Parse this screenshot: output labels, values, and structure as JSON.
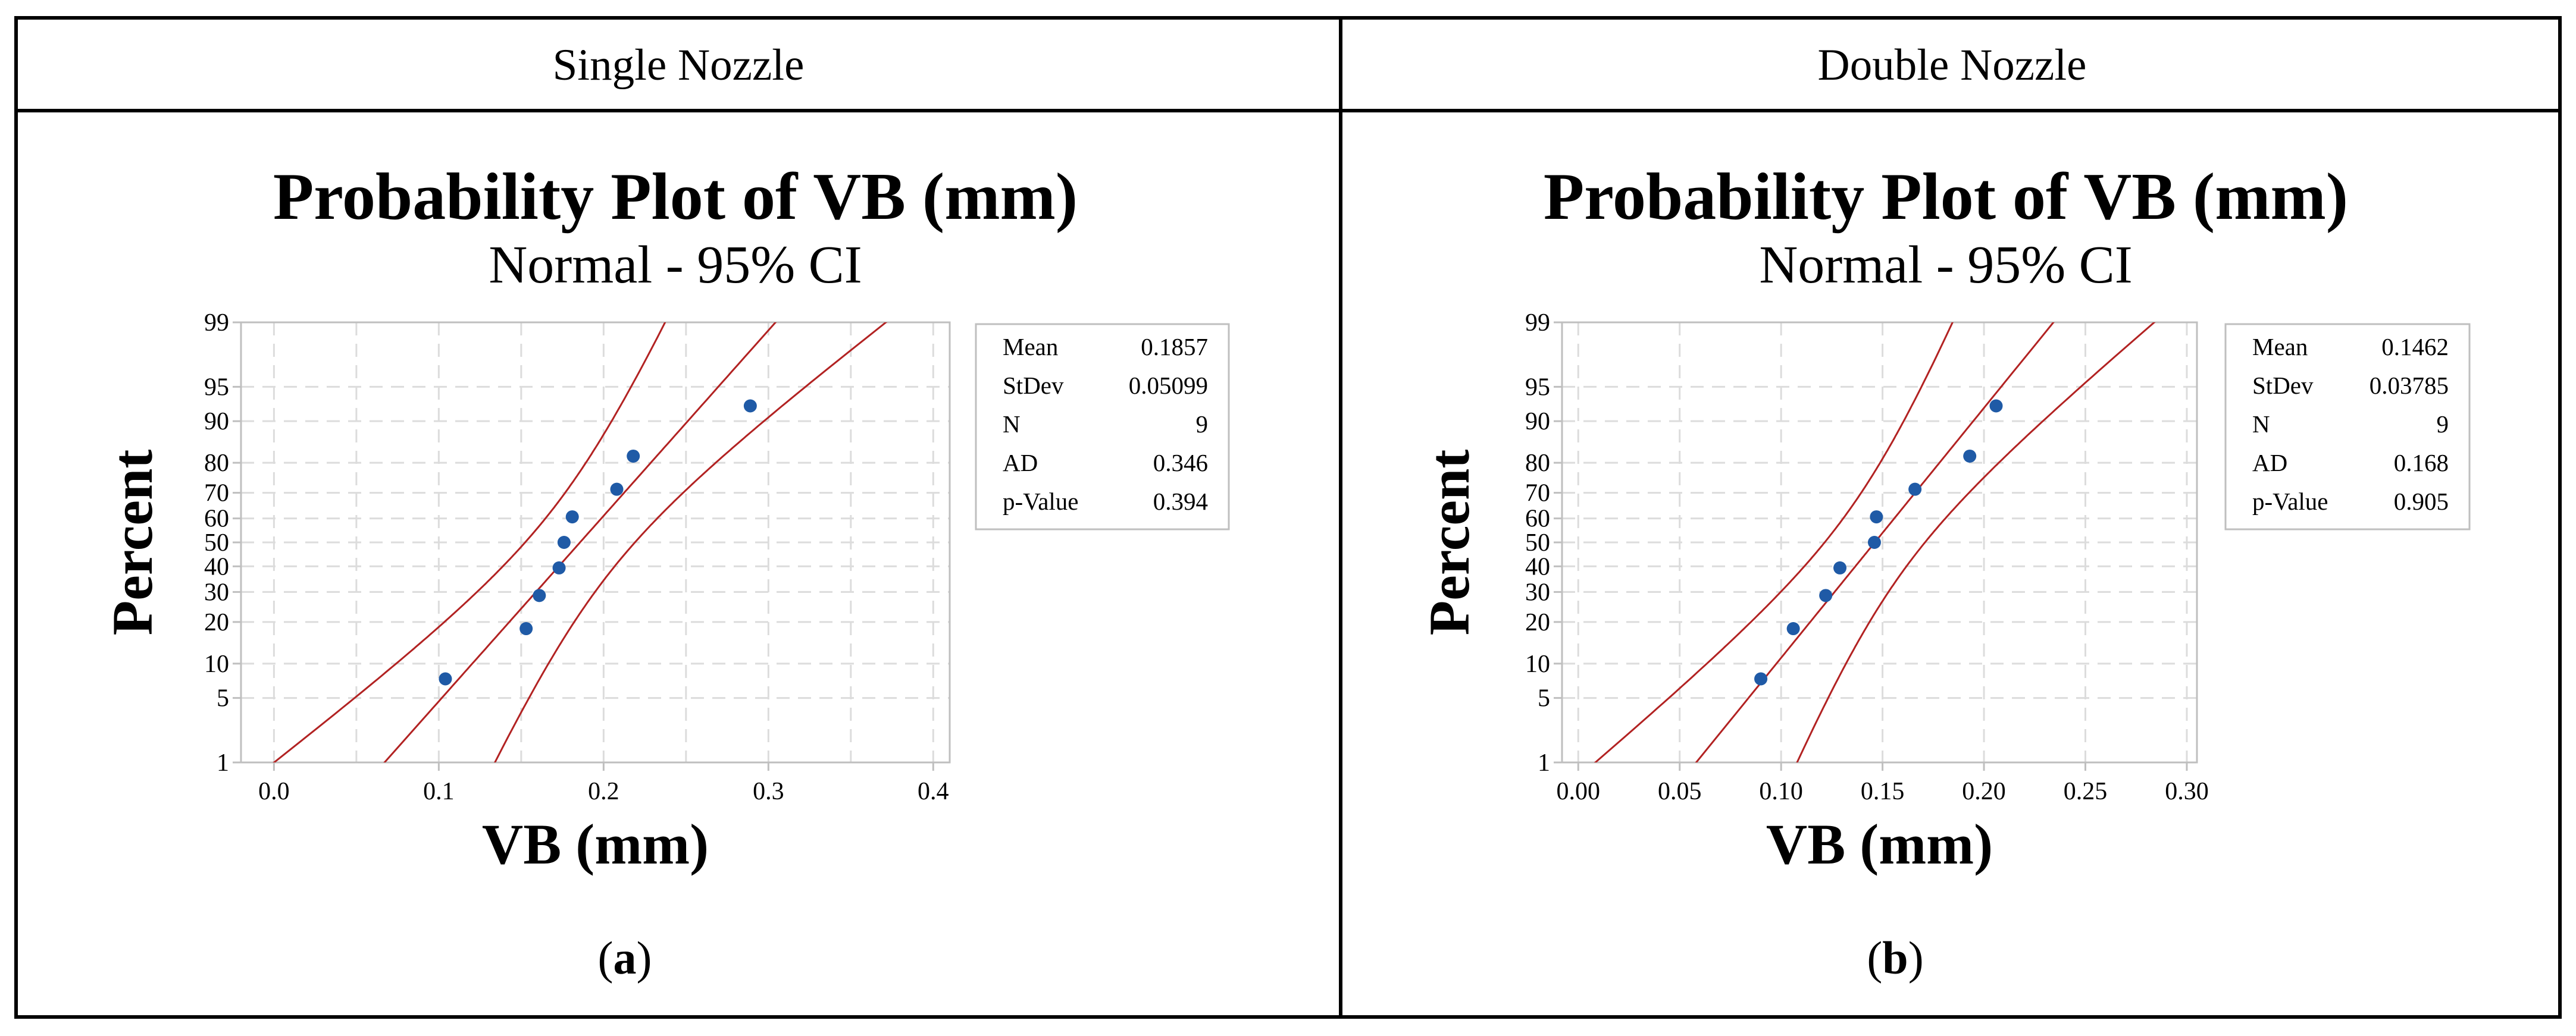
{
  "panels": [
    {
      "header": "Single Nozzle",
      "caption_letter": "a",
      "chart_data": {
        "type": "scatter",
        "title": "Probability Plot of VB (mm)",
        "subtitle": "Normal - 95% CI",
        "xlabel": "VB (mm)",
        "ylabel": "Percent",
        "xlim": [
          -0.02,
          0.41
        ],
        "x_ticks": [
          0.0,
          0.1,
          0.2,
          0.3,
          0.4
        ],
        "x_tick_labels": [
          "0.0",
          "0.1",
          "0.2",
          "0.3",
          "0.4"
        ],
        "y_ticks": [
          1,
          5,
          10,
          20,
          30,
          40,
          50,
          60,
          70,
          80,
          90,
          95,
          99
        ],
        "y_tick_labels": [
          "1",
          "5",
          "10",
          "20",
          "30",
          "40",
          "50",
          "60",
          "70",
          "80",
          "90",
          "95",
          "99"
        ],
        "x_grid": [
          0.0,
          0.05,
          0.1,
          0.15,
          0.2,
          0.25,
          0.3,
          0.35,
          0.4
        ],
        "points": [
          {
            "x": 0.104,
            "p": 7.45
          },
          {
            "x": 0.153,
            "p": 18.09
          },
          {
            "x": 0.161,
            "p": 28.72
          },
          {
            "x": 0.173,
            "p": 39.36
          },
          {
            "x": 0.176,
            "p": 50.0
          },
          {
            "x": 0.181,
            "p": 60.64
          },
          {
            "x": 0.208,
            "p": 71.28
          },
          {
            "x": 0.218,
            "p": 81.91
          },
          {
            "x": 0.289,
            "p": 92.55
          }
        ],
        "fit": {
          "mean": 0.1857,
          "stdev": 0.05099,
          "n": 9,
          "ci": 0.95
        },
        "stats": [
          {
            "label": "Mean",
            "value": "0.1857"
          },
          {
            "label": "StDev",
            "value": "0.05099"
          },
          {
            "label": "N",
            "value": "9"
          },
          {
            "label": "AD",
            "value": "0.346"
          },
          {
            "label": "p-Value",
            "value": "0.394"
          }
        ]
      }
    },
    {
      "header": "Double Nozzle",
      "caption_letter": "b",
      "chart_data": {
        "type": "scatter",
        "title": "Probability Plot of VB (mm)",
        "subtitle": "Normal - 95% CI",
        "xlabel": "VB (mm)",
        "ylabel": "Percent",
        "xlim": [
          -0.008,
          0.305
        ],
        "x_ticks": [
          0.0,
          0.05,
          0.1,
          0.15,
          0.2,
          0.25,
          0.3
        ],
        "x_tick_labels": [
          "0.00",
          "0.05",
          "0.10",
          "0.15",
          "0.20",
          "0.25",
          "0.30"
        ],
        "y_ticks": [
          1,
          5,
          10,
          20,
          30,
          40,
          50,
          60,
          70,
          80,
          90,
          95,
          99
        ],
        "y_tick_labels": [
          "1",
          "5",
          "10",
          "20",
          "30",
          "40",
          "50",
          "60",
          "70",
          "80",
          "90",
          "95",
          "99"
        ],
        "x_grid": [
          0.0,
          0.05,
          0.1,
          0.15,
          0.2,
          0.25,
          0.3
        ],
        "points": [
          {
            "x": 0.09,
            "p": 7.45
          },
          {
            "x": 0.106,
            "p": 18.09
          },
          {
            "x": 0.122,
            "p": 28.72
          },
          {
            "x": 0.129,
            "p": 39.36
          },
          {
            "x": 0.146,
            "p": 50.0
          },
          {
            "x": 0.147,
            "p": 60.64
          },
          {
            "x": 0.166,
            "p": 71.28
          },
          {
            "x": 0.193,
            "p": 81.91
          },
          {
            "x": 0.206,
            "p": 92.55
          }
        ],
        "fit": {
          "mean": 0.1462,
          "stdev": 0.03785,
          "n": 9,
          "ci": 0.95
        },
        "stats": [
          {
            "label": "Mean",
            "value": "0.1462"
          },
          {
            "label": "StDev",
            "value": "0.03785"
          },
          {
            "label": "N",
            "value": "9"
          },
          {
            "label": "AD",
            "value": "0.168"
          },
          {
            "label": "p-Value",
            "value": "0.905"
          }
        ]
      }
    }
  ],
  "colors": {
    "point": "#1f5aa6",
    "fit_line": "#b22222",
    "grid": "#dcdcdc",
    "axis": "#bfbfbf",
    "frame": "#000000"
  }
}
